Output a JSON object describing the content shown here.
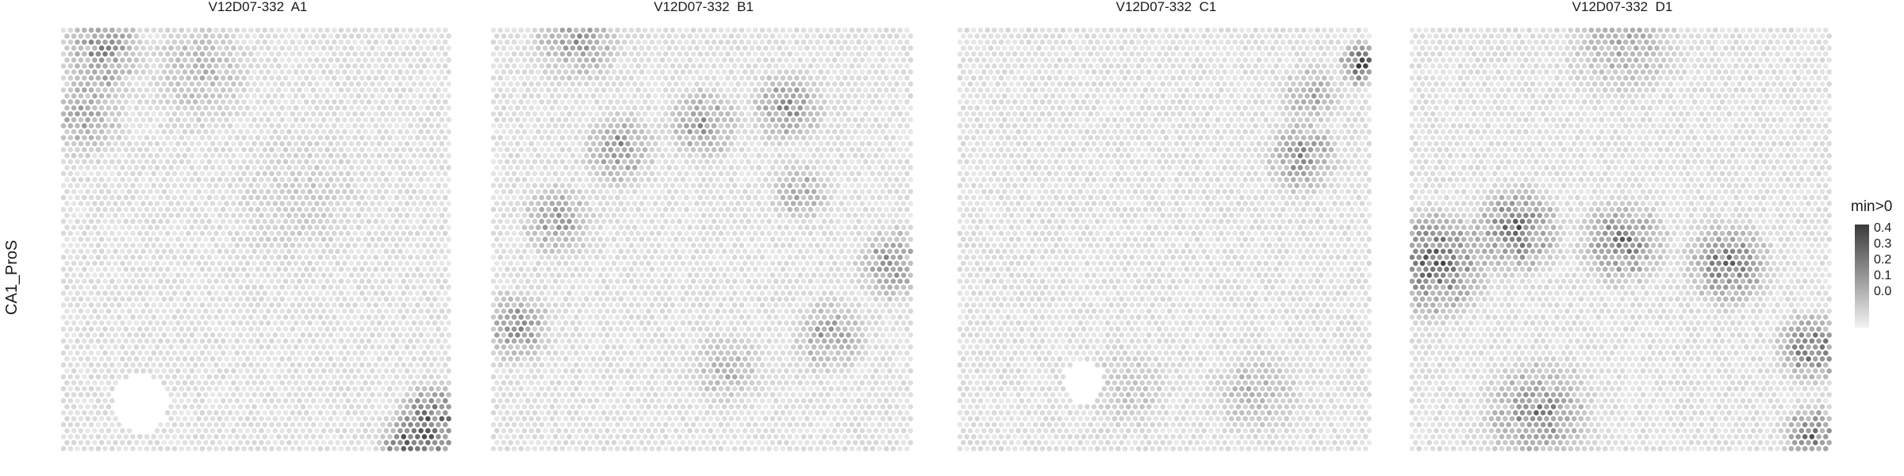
{
  "chart_data": {
    "type": "heatmap",
    "row_label": "CA1_ProS",
    "panels": [
      {
        "title": "V12D07-332  A1",
        "hotspots": [
          {
            "x": 0.1,
            "y": 0.05,
            "r": 0.12,
            "v": 0.22
          },
          {
            "x": 0.05,
            "y": 0.2,
            "r": 0.12,
            "v": 0.15
          },
          {
            "x": 0.35,
            "y": 0.1,
            "r": 0.15,
            "v": 0.1
          },
          {
            "x": 0.95,
            "y": 0.93,
            "r": 0.11,
            "v": 0.34
          },
          {
            "x": 0.87,
            "y": 0.98,
            "r": 0.08,
            "v": 0.26
          },
          {
            "x": 0.6,
            "y": 0.4,
            "r": 0.2,
            "v": 0.06
          }
        ],
        "holes": [
          {
            "x": 0.2,
            "y": 0.88,
            "r": 0.07
          }
        ]
      },
      {
        "title": "V12D07-332  B1",
        "hotspots": [
          {
            "x": 0.05,
            "y": 0.7,
            "r": 0.1,
            "v": 0.22
          },
          {
            "x": 0.15,
            "y": 0.45,
            "r": 0.1,
            "v": 0.18
          },
          {
            "x": 0.3,
            "y": 0.28,
            "r": 0.1,
            "v": 0.2
          },
          {
            "x": 0.5,
            "y": 0.22,
            "r": 0.1,
            "v": 0.2
          },
          {
            "x": 0.7,
            "y": 0.18,
            "r": 0.1,
            "v": 0.22
          },
          {
            "x": 0.73,
            "y": 0.38,
            "r": 0.08,
            "v": 0.16
          },
          {
            "x": 0.95,
            "y": 0.55,
            "r": 0.1,
            "v": 0.22
          },
          {
            "x": 0.8,
            "y": 0.72,
            "r": 0.1,
            "v": 0.18
          },
          {
            "x": 0.55,
            "y": 0.8,
            "r": 0.1,
            "v": 0.12
          },
          {
            "x": 0.2,
            "y": 0.02,
            "r": 0.12,
            "v": 0.18
          }
        ],
        "holes": []
      },
      {
        "title": "V12D07-332  C1",
        "hotspots": [
          {
            "x": 0.97,
            "y": 0.08,
            "r": 0.06,
            "v": 0.4
          },
          {
            "x": 0.83,
            "y": 0.3,
            "r": 0.1,
            "v": 0.24
          },
          {
            "x": 0.85,
            "y": 0.15,
            "r": 0.08,
            "v": 0.18
          },
          {
            "x": 0.72,
            "y": 0.85,
            "r": 0.12,
            "v": 0.12
          },
          {
            "x": 0.4,
            "y": 0.85,
            "r": 0.12,
            "v": 0.08
          }
        ],
        "holes": [
          {
            "x": 0.3,
            "y": 0.83,
            "r": 0.05
          }
        ]
      },
      {
        "title": "V12D07-332  D1",
        "hotspots": [
          {
            "x": 0.05,
            "y": 0.55,
            "r": 0.15,
            "v": 0.32
          },
          {
            "x": 0.25,
            "y": 0.47,
            "r": 0.12,
            "v": 0.3
          },
          {
            "x": 0.5,
            "y": 0.5,
            "r": 0.12,
            "v": 0.26
          },
          {
            "x": 0.75,
            "y": 0.55,
            "r": 0.12,
            "v": 0.26
          },
          {
            "x": 0.95,
            "y": 0.75,
            "r": 0.1,
            "v": 0.3
          },
          {
            "x": 0.95,
            "y": 0.95,
            "r": 0.08,
            "v": 0.3
          },
          {
            "x": 0.3,
            "y": 0.9,
            "r": 0.15,
            "v": 0.22
          },
          {
            "x": 0.5,
            "y": 0.03,
            "r": 0.15,
            "v": 0.14
          }
        ],
        "holes": []
      }
    ],
    "legend": {
      "title": "min>0",
      "ticks": [
        "0.4",
        "0.3",
        "0.2",
        "0.1",
        "0.0"
      ],
      "range": [
        0,
        0.45
      ],
      "color_low": "#f2f2f2",
      "color_high": "#3a3a3a"
    },
    "grid": false
  }
}
